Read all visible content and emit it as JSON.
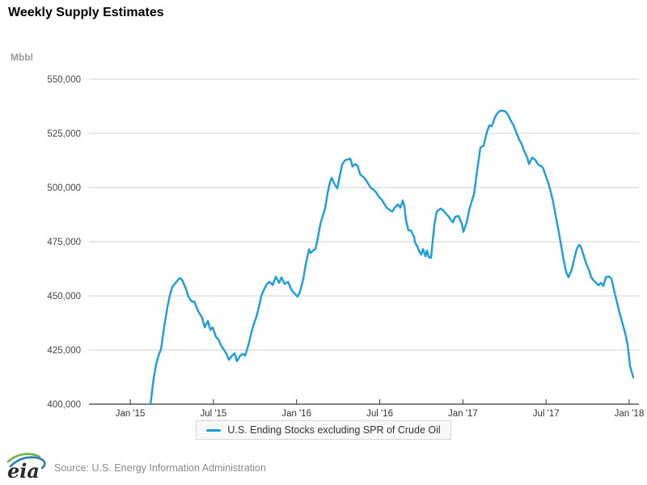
{
  "page": {
    "title": "Weekly Supply Estimates"
  },
  "legend": {
    "label": "U.S. Ending Stocks excluding SPR of Crude Oil"
  },
  "footer": {
    "logo_text": "eia",
    "source": "Source: U.S. Energy Information Administration"
  },
  "colors": {
    "series_line": "#1e9cd8",
    "gridline": "#cfcfcf",
    "axis_line": "#333333",
    "y_tick_text": "#444444",
    "x_tick_text": "#333333",
    "unit_text": "#9b9b9b",
    "logo_green": "#6cb33f",
    "logo_blue": "#2a7ab8"
  },
  "chart_data": {
    "type": "line",
    "title": "Weekly Supply Estimates",
    "ylabel_unit": "Mbbl",
    "ylim": [
      400000,
      550000
    ],
    "y_ticks": [
      400000,
      425000,
      450000,
      475000,
      500000,
      525000,
      550000
    ],
    "x_ticks": [
      {
        "m": 0,
        "label": "Jan '15"
      },
      {
        "m": 6,
        "label": "Jul '15"
      },
      {
        "m": 12,
        "label": "Jan '16"
      },
      {
        "m": 18,
        "label": "Jul '16"
      },
      {
        "m": 24,
        "label": "Jan '17"
      },
      {
        "m": 30,
        "label": "Jul '17"
      },
      {
        "m": 36,
        "label": "Jan '18"
      }
    ],
    "xlim_months": [
      -2.98,
      36.7
    ],
    "grid": true,
    "legend_position": "bottom",
    "series": [
      {
        "name": "U.S. Ending Stocks excluding SPR of Crude Oil",
        "color": "#1e9cd8",
        "x_unit": "months since Jan 1, 2015 (weekly observations)",
        "y_unit": "Mbbl",
        "points": [
          [
            1.46,
            400000
          ],
          [
            1.69,
            412000
          ],
          [
            1.87,
            418500
          ],
          [
            2.04,
            422500
          ],
          [
            2.22,
            425500
          ],
          [
            2.45,
            436000
          ],
          [
            2.68,
            444800
          ],
          [
            2.86,
            450400
          ],
          [
            3.03,
            454100
          ],
          [
            3.27,
            456000
          ],
          [
            3.56,
            458200
          ],
          [
            3.73,
            457500
          ],
          [
            4.03,
            453000
          ],
          [
            4.2,
            449600
          ],
          [
            4.43,
            447400
          ],
          [
            4.61,
            447400
          ],
          [
            4.9,
            442900
          ],
          [
            5.19,
            439900
          ],
          [
            5.37,
            435400
          ],
          [
            5.6,
            438400
          ],
          [
            5.78,
            434300
          ],
          [
            5.95,
            435400
          ],
          [
            6.18,
            431000
          ],
          [
            6.36,
            429900
          ],
          [
            6.53,
            427300
          ],
          [
            6.77,
            425000
          ],
          [
            6.94,
            423200
          ],
          [
            7.12,
            420500
          ],
          [
            7.35,
            422400
          ],
          [
            7.53,
            423500
          ],
          [
            7.7,
            419800
          ],
          [
            7.93,
            422400
          ],
          [
            8.11,
            423200
          ],
          [
            8.29,
            422400
          ],
          [
            8.52,
            427300
          ],
          [
            8.69,
            431700
          ],
          [
            8.87,
            436200
          ],
          [
            9.1,
            440300
          ],
          [
            9.28,
            444800
          ],
          [
            9.45,
            450000
          ],
          [
            9.69,
            453500
          ],
          [
            9.86,
            455500
          ],
          [
            10.04,
            456500
          ],
          [
            10.27,
            455000
          ],
          [
            10.5,
            458800
          ],
          [
            10.74,
            456000
          ],
          [
            10.91,
            458500
          ],
          [
            11.14,
            455500
          ],
          [
            11.38,
            456500
          ],
          [
            11.61,
            453000
          ],
          [
            11.79,
            451500
          ],
          [
            12.08,
            449600
          ],
          [
            12.25,
            452000
          ],
          [
            12.49,
            458000
          ],
          [
            12.66,
            464500
          ],
          [
            12.9,
            471500
          ],
          [
            13.01,
            469800
          ],
          [
            13.19,
            470900
          ],
          [
            13.36,
            471600
          ],
          [
            13.54,
            477000
          ],
          [
            13.71,
            483000
          ],
          [
            13.89,
            487000
          ],
          [
            14.06,
            490500
          ],
          [
            14.24,
            497500
          ],
          [
            14.41,
            502500
          ],
          [
            14.53,
            504500
          ],
          [
            14.7,
            502000
          ],
          [
            14.94,
            499600
          ],
          [
            15.11,
            505200
          ],
          [
            15.29,
            510800
          ],
          [
            15.52,
            512700
          ],
          [
            15.69,
            512900
          ],
          [
            15.87,
            513400
          ],
          [
            16.04,
            509700
          ],
          [
            16.22,
            510800
          ],
          [
            16.4,
            510100
          ],
          [
            16.57,
            506300
          ],
          [
            16.75,
            505200
          ],
          [
            16.98,
            503700
          ],
          [
            17.15,
            501900
          ],
          [
            17.33,
            500000
          ],
          [
            17.56,
            498900
          ],
          [
            17.74,
            497800
          ],
          [
            17.91,
            495900
          ],
          [
            18.15,
            494400
          ],
          [
            18.32,
            492500
          ],
          [
            18.5,
            490700
          ],
          [
            18.73,
            489500
          ],
          [
            18.9,
            488900
          ],
          [
            19.08,
            490700
          ],
          [
            19.31,
            492200
          ],
          [
            19.49,
            490700
          ],
          [
            19.66,
            494000
          ],
          [
            19.78,
            491400
          ],
          [
            19.9,
            484700
          ],
          [
            20.07,
            480200
          ],
          [
            20.25,
            480200
          ],
          [
            20.48,
            477200
          ],
          [
            20.54,
            474600
          ],
          [
            20.71,
            472800
          ],
          [
            20.83,
            470900
          ],
          [
            21.0,
            469000
          ],
          [
            21.12,
            471600
          ],
          [
            21.3,
            468300
          ],
          [
            21.41,
            470900
          ],
          [
            21.53,
            467900
          ],
          [
            21.7,
            467500
          ],
          [
            21.94,
            483000
          ],
          [
            22.11,
            488900
          ],
          [
            22.4,
            490300
          ],
          [
            22.58,
            489500
          ],
          [
            22.81,
            487700
          ],
          [
            22.99,
            486500
          ],
          [
            23.16,
            484700
          ],
          [
            23.28,
            483900
          ],
          [
            23.45,
            486500
          ],
          [
            23.69,
            486900
          ],
          [
            23.92,
            483200
          ],
          [
            24.04,
            479500
          ],
          [
            24.27,
            483900
          ],
          [
            24.45,
            489500
          ],
          [
            24.62,
            493300
          ],
          [
            24.8,
            497000
          ],
          [
            25.03,
            508000
          ],
          [
            25.26,
            518500
          ],
          [
            25.5,
            519400
          ],
          [
            25.73,
            525700
          ],
          [
            25.91,
            528700
          ],
          [
            26.08,
            528300
          ],
          [
            26.32,
            532500
          ],
          [
            26.49,
            534300
          ],
          [
            26.67,
            535400
          ],
          [
            26.84,
            535500
          ],
          [
            27.07,
            535100
          ],
          [
            27.25,
            533600
          ],
          [
            27.48,
            530600
          ],
          [
            27.66,
            528700
          ],
          [
            27.83,
            525700
          ],
          [
            28.07,
            522000
          ],
          [
            28.24,
            520100
          ],
          [
            28.42,
            516800
          ],
          [
            28.65,
            513800
          ],
          [
            28.77,
            510800
          ],
          [
            29.0,
            513800
          ],
          [
            29.23,
            512700
          ],
          [
            29.41,
            510800
          ],
          [
            29.58,
            510100
          ],
          [
            29.76,
            509300
          ],
          [
            29.99,
            505200
          ],
          [
            30.17,
            501900
          ],
          [
            30.34,
            498000
          ],
          [
            30.52,
            493000
          ],
          [
            30.69,
            487000
          ],
          [
            30.87,
            481000
          ],
          [
            31.04,
            475000
          ],
          [
            31.27,
            466500
          ],
          [
            31.45,
            461000
          ],
          [
            31.62,
            458600
          ],
          [
            31.86,
            462300
          ],
          [
            32.03,
            467200
          ],
          [
            32.21,
            471600
          ],
          [
            32.38,
            473500
          ],
          [
            32.5,
            472800
          ],
          [
            32.73,
            468300
          ],
          [
            32.91,
            464500
          ],
          [
            33.08,
            462300
          ],
          [
            33.26,
            458600
          ],
          [
            33.43,
            457100
          ],
          [
            33.61,
            456000
          ],
          [
            33.78,
            454900
          ],
          [
            33.96,
            456000
          ],
          [
            34.13,
            454500
          ],
          [
            34.31,
            458600
          ],
          [
            34.54,
            459000
          ],
          [
            34.72,
            457800
          ],
          [
            34.89,
            453000
          ],
          [
            35.13,
            446600
          ],
          [
            35.3,
            442200
          ],
          [
            35.48,
            438100
          ],
          [
            35.71,
            432800
          ],
          [
            35.89,
            427300
          ],
          [
            36.06,
            417600
          ],
          [
            36.29,
            412400
          ]
        ]
      }
    ]
  }
}
